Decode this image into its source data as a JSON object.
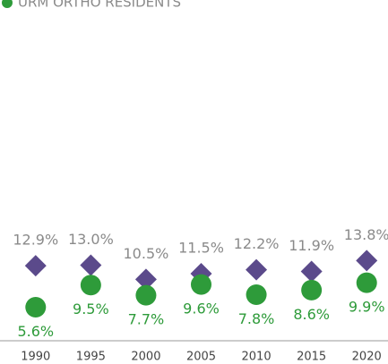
{
  "chart_data": {
    "type": "scatter",
    "categories": [
      "1990",
      "1995",
      "2000",
      "2005",
      "2010",
      "2015",
      "2020"
    ],
    "series": [
      {
        "color": "#5b4a8b",
        "marker": "diamond",
        "values": [
          12.9,
          13.0,
          10.5,
          11.5,
          12.2,
          11.9,
          13.8
        ],
        "value_labels": [
          "12.9%",
          "13.0%",
          "10.5%",
          "11.5%",
          "12.2%",
          "11.9%",
          "13.8%"
        ]
      },
      {
        "name": "URM ORTHO RESIDENTS",
        "color": "#2e9b3a",
        "marker": "circle",
        "values": [
          5.6,
          9.5,
          7.7,
          9.6,
          7.8,
          8.6,
          9.9
        ],
        "value_labels": [
          "5.6%",
          "9.5%",
          "7.7%",
          "9.6%",
          "7.8%",
          "8.6%",
          "9.9%"
        ]
      }
    ],
    "ylim": [
      0,
      55
    ]
  }
}
